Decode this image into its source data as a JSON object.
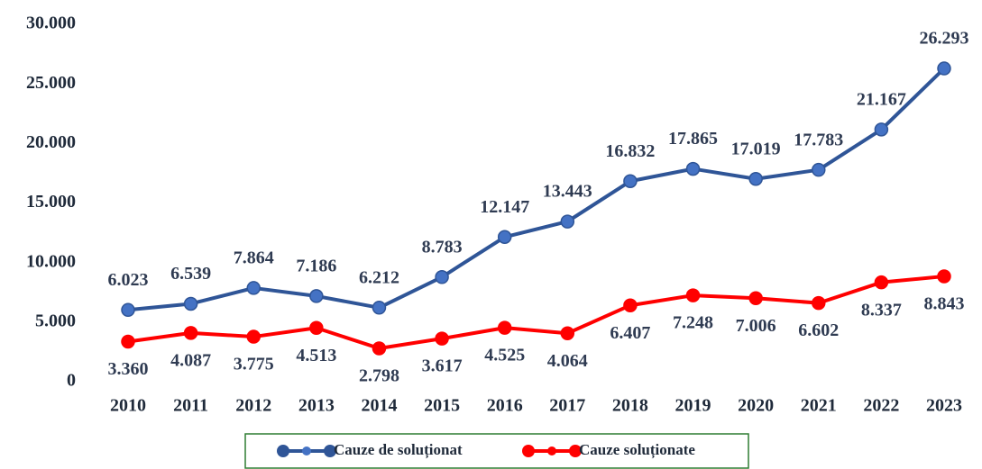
{
  "chart_data": {
    "type": "line",
    "categories": [
      "2010",
      "2011",
      "2012",
      "2013",
      "2014",
      "2015",
      "2016",
      "2017",
      "2018",
      "2019",
      "2020",
      "2021",
      "2022",
      "2023"
    ],
    "series": [
      {
        "name": "Cauze de soluționat",
        "color": "#2f5597",
        "marker_color": "#4472c4",
        "values": [
          6023,
          6539,
          7864,
          7186,
          6212,
          8783,
          12147,
          13443,
          16832,
          17865,
          17019,
          17783,
          21167,
          26293
        ],
        "value_labels": [
          "6.023",
          "6.539",
          "7.864",
          "7.186",
          "6.212",
          "8.783",
          "12.147",
          "13.443",
          "16.832",
          "17.865",
          "17.019",
          "17.783",
          "21.167",
          "26.293"
        ]
      },
      {
        "name": "Cauze soluționate",
        "color": "#ff0000",
        "marker_color": "#ff0000",
        "values": [
          3360,
          4087,
          3775,
          4513,
          2798,
          3617,
          4525,
          4064,
          6407,
          7248,
          7006,
          6602,
          8337,
          8843
        ],
        "value_labels": [
          "3.360",
          "4.087",
          "3.775",
          "4.513",
          "2.798",
          "3.617",
          "4.525",
          "4.064",
          "6.407",
          "7.248",
          "7.006",
          "6.602",
          "8.337",
          "8.843"
        ]
      }
    ],
    "ylim": [
      0,
      30000
    ],
    "yticks": [
      0,
      {
        "value": 5000,
        "label": "5.000"
      },
      {
        "value": 10000,
        "label": "10.000"
      },
      {
        "value": 15000,
        "label": "15.000"
      },
      {
        "value": 20000,
        "label": "20.000"
      },
      {
        "value": 25000,
        "label": "25.000"
      },
      {
        "value": 30000,
        "label": "30.000"
      }
    ],
    "grid": false,
    "legend": "bottom"
  }
}
